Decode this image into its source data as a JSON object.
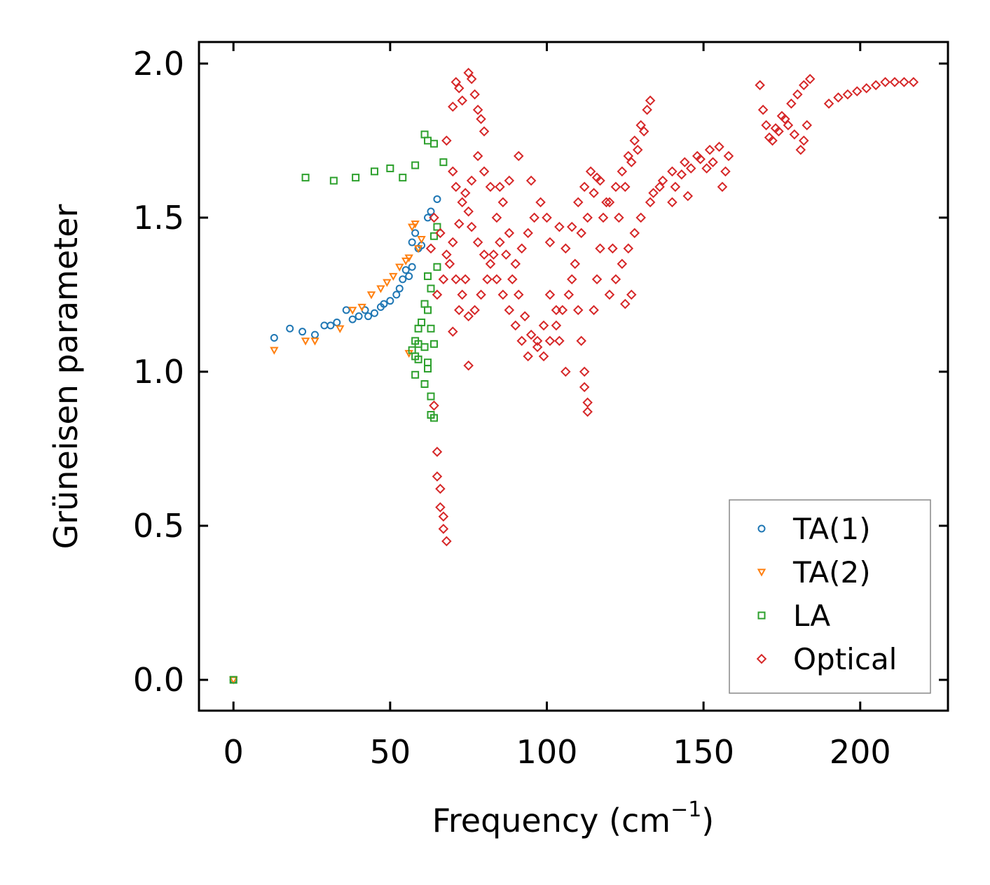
{
  "chart_data": {
    "type": "scatter",
    "title": "",
    "xlabel_text": "Frequency (cm",
    "xlabel_sup": "−1",
    "xlabel_close": ")",
    "ylabel": "Grüneisen parameter",
    "xlim": [
      -11,
      228
    ],
    "ylim": [
      -0.1,
      2.07
    ],
    "x_ticks": [
      0,
      50,
      100,
      150,
      200
    ],
    "x_tick_labels": [
      "0",
      "50",
      "100",
      "150",
      "200"
    ],
    "y_ticks": [
      0.0,
      0.5,
      1.0,
      1.5,
      2.0
    ],
    "y_tick_labels": [
      "0.0",
      "0.5",
      "1.0",
      "1.5",
      "2.0"
    ],
    "legend_position": "lower-right",
    "series": [
      {
        "name": "TA(1)",
        "marker": "circle",
        "color": "#1f77b4",
        "points": [
          [
            0,
            0
          ],
          [
            13,
            1.11
          ],
          [
            18,
            1.14
          ],
          [
            22,
            1.13
          ],
          [
            26,
            1.12
          ],
          [
            29,
            1.15
          ],
          [
            31,
            1.15
          ],
          [
            33,
            1.16
          ],
          [
            36,
            1.2
          ],
          [
            38,
            1.17
          ],
          [
            40,
            1.18
          ],
          [
            42,
            1.2
          ],
          [
            43,
            1.18
          ],
          [
            45,
            1.19
          ],
          [
            47,
            1.21
          ],
          [
            48,
            1.22
          ],
          [
            50,
            1.23
          ],
          [
            52,
            1.25
          ],
          [
            53,
            1.27
          ],
          [
            54,
            1.3
          ],
          [
            55,
            1.33
          ],
          [
            56,
            1.31
          ],
          [
            57,
            1.34
          ],
          [
            57,
            1.42
          ],
          [
            58,
            1.45
          ],
          [
            59,
            1.4
          ],
          [
            60,
            1.41
          ],
          [
            62,
            1.5
          ],
          [
            63,
            1.52
          ],
          [
            65,
            1.56
          ]
        ]
      },
      {
        "name": "TA(2)",
        "marker": "triangle-down",
        "color": "#ff7f0e",
        "points": [
          [
            0,
            0
          ],
          [
            13,
            1.07
          ],
          [
            23,
            1.1
          ],
          [
            26,
            1.1
          ],
          [
            34,
            1.14
          ],
          [
            38,
            1.2
          ],
          [
            41,
            1.21
          ],
          [
            44,
            1.25
          ],
          [
            47,
            1.27
          ],
          [
            49,
            1.29
          ],
          [
            51,
            1.31
          ],
          [
            53,
            1.34
          ],
          [
            55,
            1.36
          ],
          [
            56,
            1.37
          ],
          [
            57,
            1.47
          ],
          [
            58,
            1.48
          ],
          [
            59,
            1.4
          ],
          [
            60,
            1.43
          ],
          [
            56,
            1.06
          ]
        ]
      },
      {
        "name": "LA",
        "marker": "square",
        "color": "#2ca02c",
        "points": [
          [
            0,
            0
          ],
          [
            23,
            1.63
          ],
          [
            32,
            1.62
          ],
          [
            39,
            1.63
          ],
          [
            45,
            1.65
          ],
          [
            50,
            1.66
          ],
          [
            54,
            1.63
          ],
          [
            58,
            1.67
          ],
          [
            61,
            1.77
          ],
          [
            62,
            1.75
          ],
          [
            64,
            1.74
          ],
          [
            67,
            1.68
          ],
          [
            65,
            1.47
          ],
          [
            64,
            1.44
          ],
          [
            65,
            1.34
          ],
          [
            62,
            1.31
          ],
          [
            63,
            1.27
          ],
          [
            61,
            1.22
          ],
          [
            62,
            1.2
          ],
          [
            60,
            1.16
          ],
          [
            59,
            1.14
          ],
          [
            58,
            1.1
          ],
          [
            59,
            1.09
          ],
          [
            61,
            1.08
          ],
          [
            57,
            1.07
          ],
          [
            58,
            1.05
          ],
          [
            59,
            1.04
          ],
          [
            62,
            1.03
          ],
          [
            62,
            1.01
          ],
          [
            58,
            0.99
          ],
          [
            61,
            0.96
          ],
          [
            63,
            0.92
          ],
          [
            63,
            0.86
          ],
          [
            64,
            0.85
          ],
          [
            63,
            1.14
          ],
          [
            64,
            1.09
          ]
        ]
      },
      {
        "name": "Optical",
        "marker": "diamond",
        "color": "#d62728",
        "points": [
          [
            64,
            0.89
          ],
          [
            65,
            0.74
          ],
          [
            65,
            0.66
          ],
          [
            66,
            0.62
          ],
          [
            66,
            0.56
          ],
          [
            67,
            0.53
          ],
          [
            67,
            0.49
          ],
          [
            68,
            0.45
          ],
          [
            70,
            1.86
          ],
          [
            71,
            1.94
          ],
          [
            72,
            1.92
          ],
          [
            73,
            1.88
          ],
          [
            75,
            1.97
          ],
          [
            76,
            1.95
          ],
          [
            77,
            1.9
          ],
          [
            78,
            1.85
          ],
          [
            79,
            1.82
          ],
          [
            80,
            1.78
          ],
          [
            68,
            1.75
          ],
          [
            70,
            1.65
          ],
          [
            71,
            1.6
          ],
          [
            73,
            1.55
          ],
          [
            75,
            1.52
          ],
          [
            76,
            1.47
          ],
          [
            78,
            1.42
          ],
          [
            80,
            1.38
          ],
          [
            82,
            1.35
          ],
          [
            84,
            1.3
          ],
          [
            86,
            1.25
          ],
          [
            88,
            1.2
          ],
          [
            90,
            1.15
          ],
          [
            92,
            1.1
          ],
          [
            94,
            1.05
          ],
          [
            75,
            1.02
          ],
          [
            70,
            1.13
          ],
          [
            72,
            1.2
          ],
          [
            74,
            1.3
          ],
          [
            85,
            1.6
          ],
          [
            88,
            1.62
          ],
          [
            91,
            1.7
          ],
          [
            95,
            1.62
          ],
          [
            98,
            1.55
          ],
          [
            100,
            1.5
          ],
          [
            101,
            1.42
          ],
          [
            104,
            1.47
          ],
          [
            106,
            1.4
          ],
          [
            108,
            1.3
          ],
          [
            110,
            1.2
          ],
          [
            111,
            1.1
          ],
          [
            112,
            1.0
          ],
          [
            112,
            0.95
          ],
          [
            113,
            0.9
          ],
          [
            113,
            0.87
          ],
          [
            106,
            1.0
          ],
          [
            104,
            1.1
          ],
          [
            103,
            1.2
          ],
          [
            101,
            1.25
          ],
          [
            99,
            1.15
          ],
          [
            97,
            1.1
          ],
          [
            115,
            1.2
          ],
          [
            116,
            1.3
          ],
          [
            117,
            1.4
          ],
          [
            118,
            1.5
          ],
          [
            120,
            1.55
          ],
          [
            122,
            1.6
          ],
          [
            124,
            1.65
          ],
          [
            126,
            1.7
          ],
          [
            128,
            1.75
          ],
          [
            130,
            1.8
          ],
          [
            132,
            1.85
          ],
          [
            133,
            1.88
          ],
          [
            120,
            1.25
          ],
          [
            122,
            1.3
          ],
          [
            124,
            1.35
          ],
          [
            126,
            1.4
          ],
          [
            128,
            1.45
          ],
          [
            130,
            1.5
          ],
          [
            133,
            1.55
          ],
          [
            136,
            1.6
          ],
          [
            140,
            1.65
          ],
          [
            144,
            1.68
          ],
          [
            148,
            1.7
          ],
          [
            152,
            1.72
          ],
          [
            155,
            1.73
          ],
          [
            158,
            1.7
          ],
          [
            156,
            1.6
          ],
          [
            145,
            1.57
          ],
          [
            140,
            1.55
          ],
          [
            127,
            1.25
          ],
          [
            125,
            1.22
          ],
          [
            116,
            1.63
          ],
          [
            114,
            1.65
          ],
          [
            112,
            1.6
          ],
          [
            110,
            1.55
          ],
          [
            108,
            1.47
          ],
          [
            96,
            1.5
          ],
          [
            94,
            1.45
          ],
          [
            92,
            1.4
          ],
          [
            90,
            1.35
          ],
          [
            88,
            1.45
          ],
          [
            86,
            1.55
          ],
          [
            84,
            1.5
          ],
          [
            82,
            1.6
          ],
          [
            80,
            1.65
          ],
          [
            78,
            1.7
          ],
          [
            76,
            1.62
          ],
          [
            74,
            1.58
          ],
          [
            72,
            1.48
          ],
          [
            70,
            1.42
          ],
          [
            68,
            1.38
          ],
          [
            66,
            1.45
          ],
          [
            64,
            1.5
          ],
          [
            168,
            1.93
          ],
          [
            169,
            1.85
          ],
          [
            170,
            1.8
          ],
          [
            171,
            1.76
          ],
          [
            172,
            1.75
          ],
          [
            174,
            1.78
          ],
          [
            176,
            1.82
          ],
          [
            178,
            1.87
          ],
          [
            180,
            1.9
          ],
          [
            182,
            1.93
          ],
          [
            184,
            1.95
          ],
          [
            183,
            1.8
          ],
          [
            182,
            1.75
          ],
          [
            181,
            1.72
          ],
          [
            179,
            1.77
          ],
          [
            177,
            1.8
          ],
          [
            175,
            1.83
          ],
          [
            173,
            1.79
          ],
          [
            190,
            1.87
          ],
          [
            193,
            1.89
          ],
          [
            196,
            1.9
          ],
          [
            199,
            1.91
          ],
          [
            202,
            1.92
          ],
          [
            205,
            1.93
          ],
          [
            208,
            1.94
          ],
          [
            211,
            1.94
          ],
          [
            214,
            1.94
          ],
          [
            217,
            1.94
          ],
          [
            121,
            1.4
          ],
          [
            123,
            1.5
          ],
          [
            125,
            1.6
          ],
          [
            127,
            1.68
          ],
          [
            129,
            1.72
          ],
          [
            131,
            1.78
          ],
          [
            119,
            1.55
          ],
          [
            117,
            1.62
          ],
          [
            115,
            1.58
          ],
          [
            113,
            1.5
          ],
          [
            111,
            1.45
          ],
          [
            109,
            1.35
          ],
          [
            107,
            1.25
          ],
          [
            105,
            1.2
          ],
          [
            103,
            1.15
          ],
          [
            101,
            1.1
          ],
          [
            99,
            1.05
          ],
          [
            97,
            1.08
          ],
          [
            95,
            1.12
          ],
          [
            93,
            1.18
          ],
          [
            91,
            1.25
          ],
          [
            89,
            1.3
          ],
          [
            87,
            1.38
          ],
          [
            85,
            1.42
          ],
          [
            83,
            1.38
          ],
          [
            81,
            1.3
          ],
          [
            79,
            1.25
          ],
          [
            77,
            1.2
          ],
          [
            75,
            1.18
          ],
          [
            73,
            1.25
          ],
          [
            71,
            1.3
          ],
          [
            69,
            1.35
          ],
          [
            67,
            1.3
          ],
          [
            65,
            1.25
          ],
          [
            63,
            1.4
          ],
          [
            134,
            1.58
          ],
          [
            137,
            1.62
          ],
          [
            141,
            1.6
          ],
          [
            143,
            1.64
          ],
          [
            146,
            1.66
          ],
          [
            149,
            1.69
          ],
          [
            151,
            1.66
          ],
          [
            153,
            1.68
          ],
          [
            157,
            1.65
          ]
        ]
      }
    ]
  }
}
